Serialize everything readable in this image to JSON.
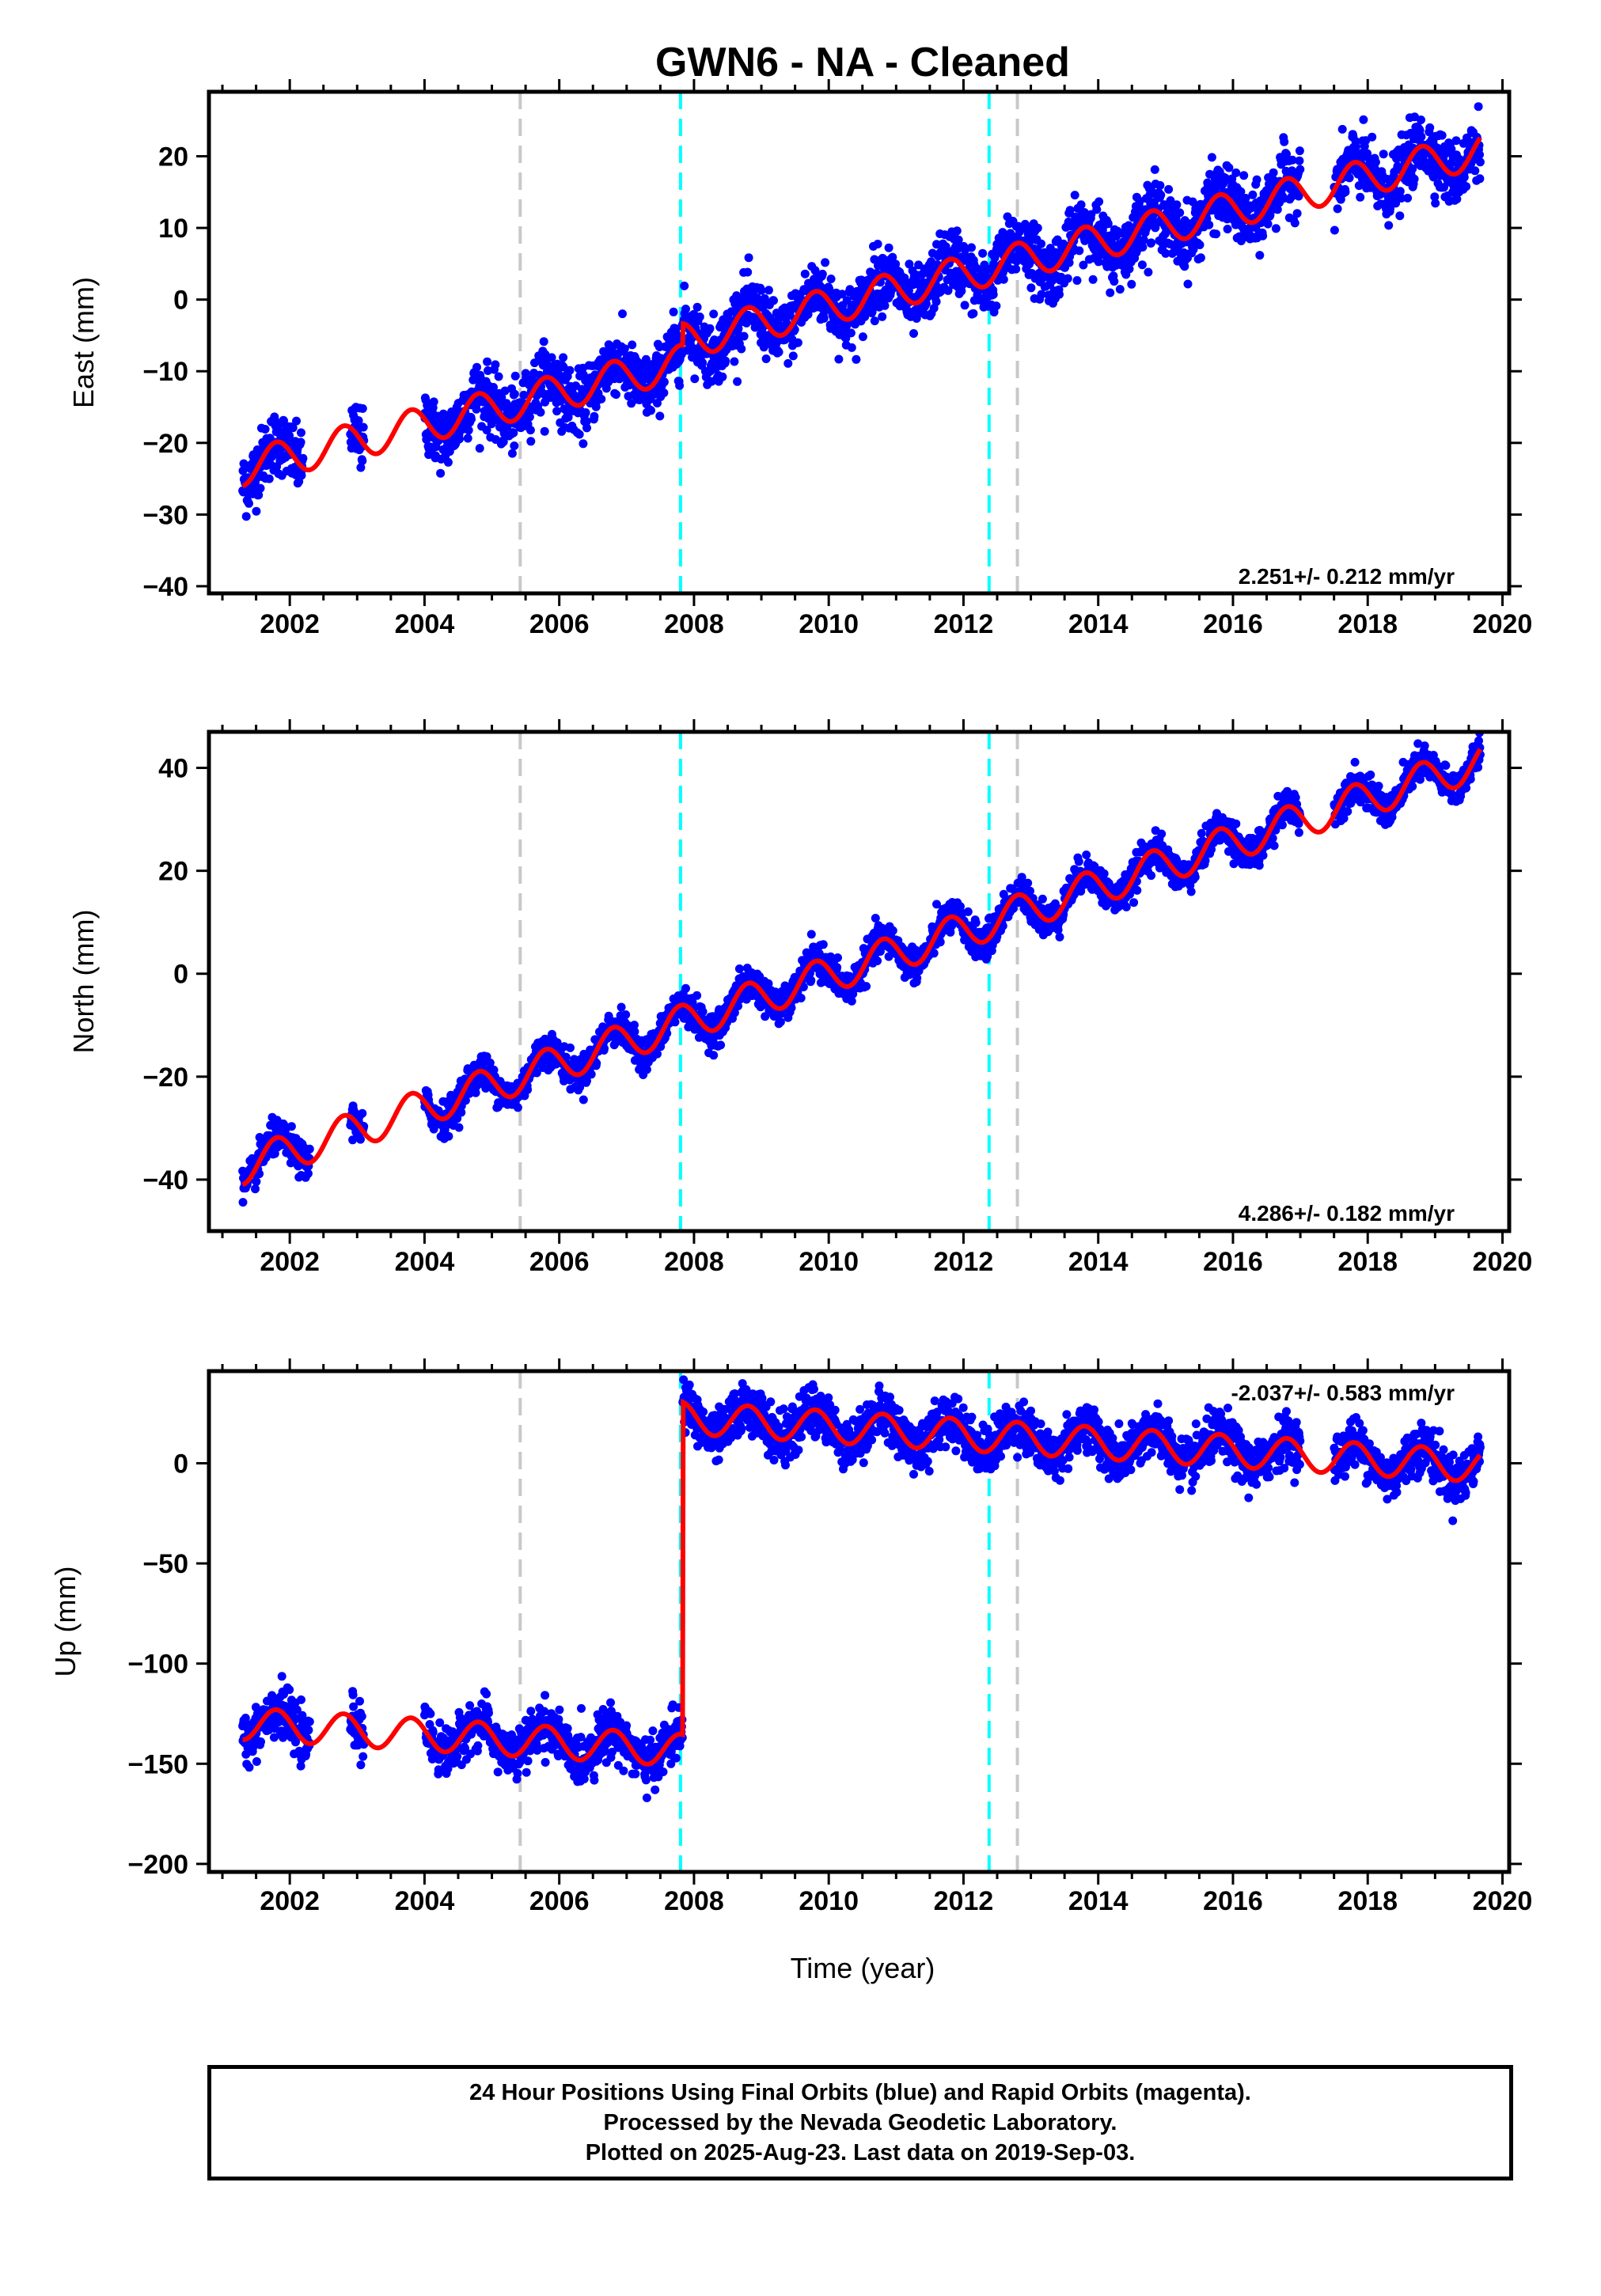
{
  "title": "GWN6  - NA - Cleaned",
  "xlabel": "Time (year)",
  "colors": {
    "data_points": "#0000ff",
    "model_fit": "#ff0000",
    "gray_line": "#c8c8c8",
    "cyan_line": "#00ffff",
    "frame": "#000000"
  },
  "footer": {
    "line1": "24 Hour Positions Using Final Orbits (blue) and Rapid Orbits (magenta).",
    "line2": "Processed by the Nevada Geodetic Laboratory.",
    "line3": "Plotted on 2025-Aug-23. Last data on 2019-Sep-03."
  },
  "chart_data": [
    {
      "type": "scatter",
      "component": "East",
      "ylabel": "East (mm)",
      "xlim": [
        2000.8,
        2020.1
      ],
      "ylim": [
        -41,
        29
      ],
      "xticks": [
        2002,
        2004,
        2006,
        2008,
        2010,
        2012,
        2014,
        2016,
        2018,
        2020
      ],
      "yticks": [
        -40,
        -30,
        -20,
        -10,
        0,
        10,
        20
      ],
      "rate_annotation": "2.251+/- 0.212 mm/yr",
      "rate_mm_per_yr": 2.251,
      "annual_amplitude_mm": 2.5,
      "noise_mm": 2.2,
      "offsets": [
        {
          "year": 2007.83,
          "step_mm": 3.0
        }
      ],
      "model_anchor": {
        "year": 2001.3,
        "value": -26
      },
      "data_gaps": [
        [
          2002.2,
          2002.9
        ],
        [
          2003.1,
          2004.0
        ],
        [
          2017.0,
          2017.5
        ]
      ],
      "vertical_lines": [
        {
          "year": 2005.42,
          "color": "gray"
        },
        {
          "year": 2007.8,
          "color": "cyan"
        },
        {
          "year": 2012.38,
          "color": "cyan"
        },
        {
          "year": 2012.8,
          "color": "gray"
        }
      ],
      "series": [
        {
          "name": "24 Hour Positions Using Final Orbits (blue)",
          "role": "data"
        },
        {
          "role": "model"
        }
      ]
    },
    {
      "type": "scatter",
      "component": "North",
      "ylabel": "North (mm)",
      "xlim": [
        2000.8,
        2020.1
      ],
      "ylim": [
        -50,
        47
      ],
      "xticks": [
        2002,
        2004,
        2006,
        2008,
        2010,
        2012,
        2014,
        2016,
        2018,
        2020
      ],
      "yticks": [
        -40,
        -20,
        0,
        20,
        40
      ],
      "rate_annotation": "4.286+/- 0.182 mm/yr",
      "rate_mm_per_yr": 4.286,
      "annual_amplitude_mm": 3.5,
      "noise_mm": 1.6,
      "offsets": [],
      "model_anchor": {
        "year": 2001.3,
        "value": -41
      },
      "data_gaps": [
        [
          2002.3,
          2002.9
        ],
        [
          2003.1,
          2004.0
        ],
        [
          2017.0,
          2017.5
        ]
      ],
      "vertical_lines": [
        {
          "year": 2005.42,
          "color": "gray"
        },
        {
          "year": 2007.8,
          "color": "cyan"
        },
        {
          "year": 2012.38,
          "color": "cyan"
        },
        {
          "year": 2012.8,
          "color": "gray"
        }
      ],
      "series": [
        {
          "name": "24 Hour Positions Using Final Orbits (blue)",
          "role": "data"
        },
        {
          "role": "model"
        }
      ]
    },
    {
      "type": "scatter",
      "component": "Up",
      "ylabel": "Up (mm)",
      "xlim": [
        2000.8,
        2020.1
      ],
      "ylim": [
        -204,
        46
      ],
      "xticks": [
        2002,
        2004,
        2006,
        2008,
        2010,
        2012,
        2014,
        2016,
        2018,
        2020
      ],
      "yticks": [
        -200,
        -150,
        -100,
        -50,
        0
      ],
      "rate_annotation": "-2.037+/- 0.583 mm/yr",
      "rate_mm_per_yr": -2.037,
      "annual_amplitude_mm": 8,
      "noise_mm": 6,
      "offsets": [
        {
          "year": 2007.83,
          "step_mm": 166
        }
      ],
      "model_anchor": {
        "year": 2001.3,
        "value": -138
      },
      "data_gaps": [
        [
          2002.3,
          2002.9
        ],
        [
          2003.1,
          2004.0
        ],
        [
          2017.0,
          2017.5
        ]
      ],
      "vertical_lines": [
        {
          "year": 2005.42,
          "color": "gray"
        },
        {
          "year": 2007.8,
          "color": "cyan"
        },
        {
          "year": 2012.38,
          "color": "cyan"
        },
        {
          "year": 2012.8,
          "color": "gray"
        }
      ],
      "series": [
        {
          "name": "24 Hour Positions Using Final Orbits (blue)",
          "role": "data"
        },
        {
          "role": "model"
        }
      ]
    }
  ]
}
